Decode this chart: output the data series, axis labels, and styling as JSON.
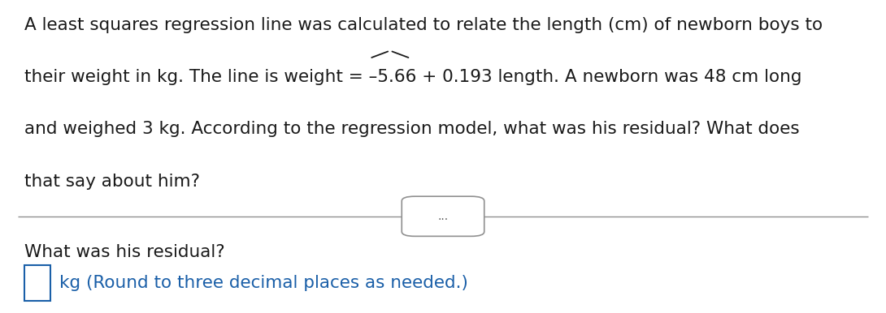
{
  "background_color": "#ffffff",
  "line1": "A least squares regression line was calculated to relate the length (cm) of newborn boys to",
  "line2_pre": "their weight in kg. The line is weight",
  "line2_post": " = –5.66 + 0.193 length. A newborn was 48 cm long",
  "line2_pre_noweight": "their weight in kg. The line is ",
  "line3": "and weighed 3 kg. According to the regression model, what was his residual? What does",
  "line4": "that say about him?",
  "dots_label": "...",
  "question_text": "What was his residual?",
  "answer_label": "kg (Round to three decimal places as needed.)",
  "answer_text_color": "#1a5fa8",
  "box_color": "#1a5fa8",
  "main_text_color": "#1a1a1a",
  "font_size_main": 15.5,
  "divider_color": "#909090"
}
